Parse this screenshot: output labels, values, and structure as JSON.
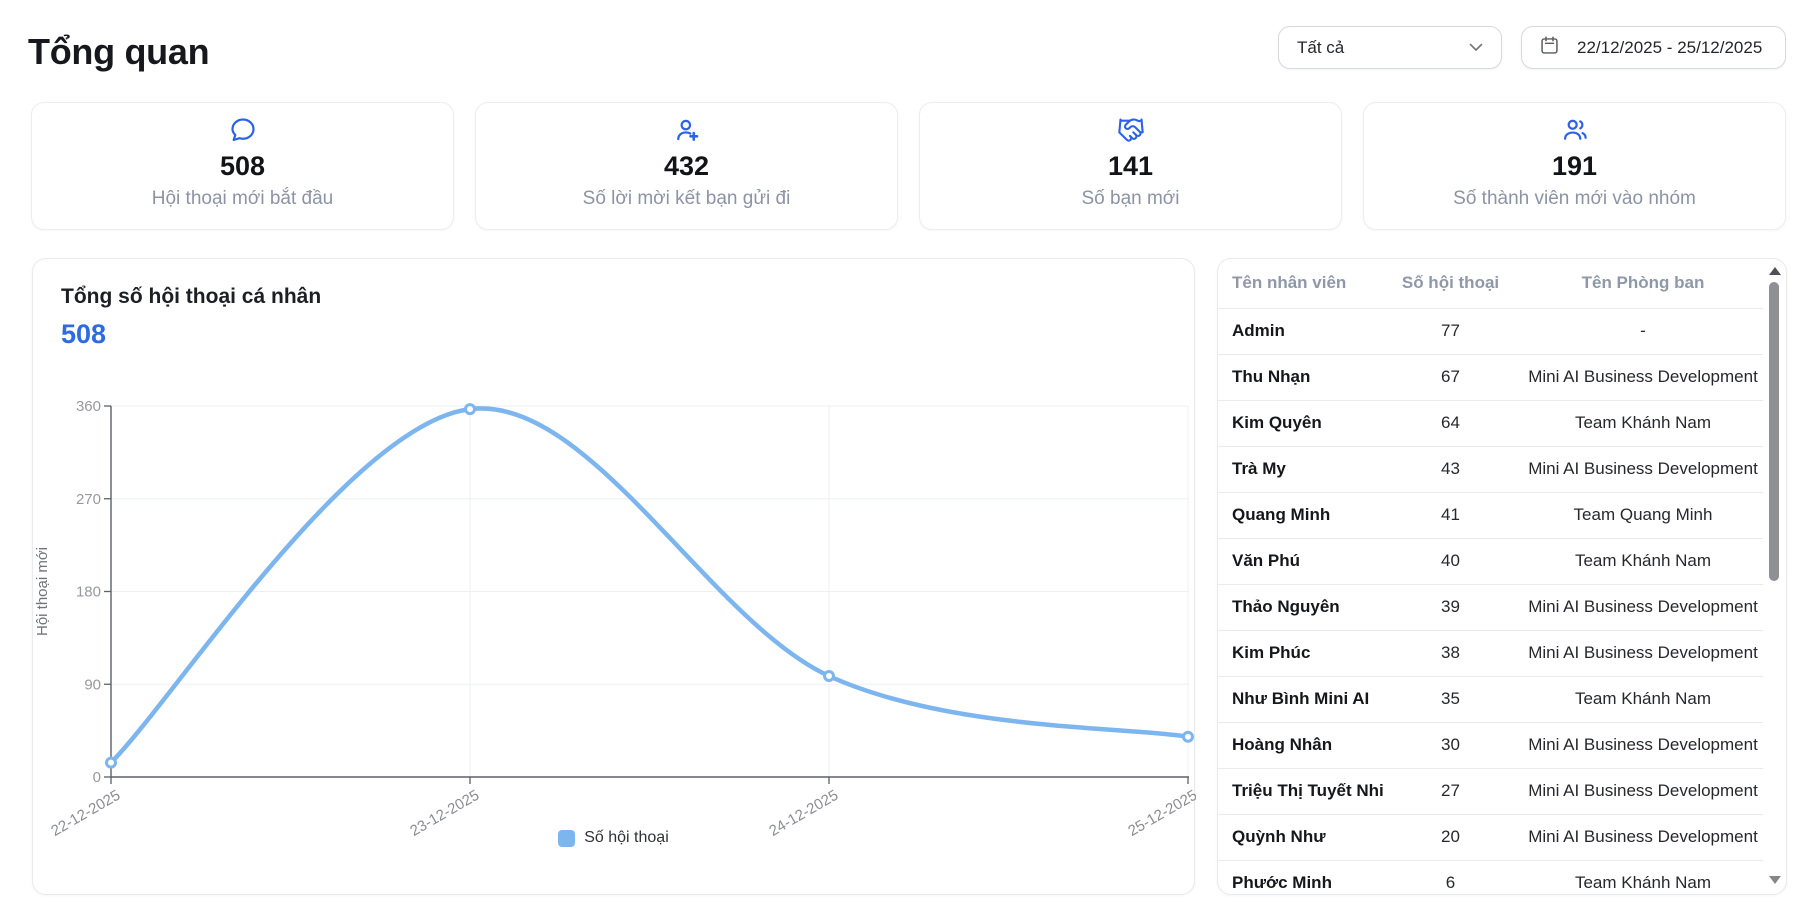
{
  "header": {
    "title": "Tổng quan"
  },
  "filters": {
    "scope_select": {
      "value": "Tất cả"
    },
    "date_range": {
      "value": "22/12/2025 - 25/12/2025"
    }
  },
  "stats": [
    {
      "icon": "chat-bubble-icon",
      "value": "508",
      "label": "Hội thoại mới bắt đầu"
    },
    {
      "icon": "person-add-icon",
      "value": "432",
      "label": "Số lời mời kết bạn gửi đi"
    },
    {
      "icon": "handshake-icon",
      "value": "141",
      "label": "Số bạn mới"
    },
    {
      "icon": "people-group-icon",
      "value": "191",
      "label": "Số thành viên mới vào nhóm"
    }
  ],
  "chart_panel": {
    "title": "Tổng số hội thoại cá nhân",
    "total": "508"
  },
  "chart_data": {
    "type": "line",
    "x": [
      "22-12-2025",
      "23-12-2025",
      "24-12-2025",
      "25-12-2025"
    ],
    "series": [
      {
        "name": "Số hội thoại",
        "values": [
          14,
          357,
          98,
          39
        ]
      }
    ],
    "title": "Tổng số hội thoại cá nhân",
    "xlabel": "",
    "ylabel": "Hội thoại mới",
    "ylim": [
      0,
      360
    ],
    "yticks": [
      0,
      90,
      180,
      270,
      360
    ],
    "grid": true,
    "legend_position": "bottom",
    "line_color": "#7db5ef",
    "smooth": true
  },
  "table": {
    "headers": [
      "Tên nhân viên",
      "Số hội thoại",
      "Tên Phòng ban"
    ],
    "rows": [
      [
        "Admin",
        "77",
        "-"
      ],
      [
        "Thu Nhạn",
        "67",
        "Mini AI Business Development"
      ],
      [
        "Kim Quyên",
        "64",
        "Team Khánh Nam"
      ],
      [
        "Trà My",
        "43",
        "Mini AI Business Development"
      ],
      [
        "Quang Minh",
        "41",
        "Team Quang Minh"
      ],
      [
        "Văn Phú",
        "40",
        "Team Khánh Nam"
      ],
      [
        "Thảo Nguyên",
        "39",
        "Mini AI Business Development"
      ],
      [
        "Kim Phúc",
        "38",
        "Mini AI Business Development"
      ],
      [
        "Như Bình Mini AI",
        "35",
        "Team Khánh Nam"
      ],
      [
        "Hoàng Nhân",
        "30",
        "Mini AI Business Development"
      ],
      [
        "Triệu Thị Tuyết Nhi",
        "27",
        "Mini AI Business Development"
      ],
      [
        "Quỳnh Như",
        "20",
        "Mini AI Business Development"
      ],
      [
        "Phước Minh",
        "6",
        "Team Khánh Nam"
      ]
    ]
  },
  "colors": {
    "accent_blue": "#2c63e6",
    "line_blue": "#7db5ef",
    "axis_gray": "#5b6069",
    "grid_gray": "#edeff3"
  }
}
